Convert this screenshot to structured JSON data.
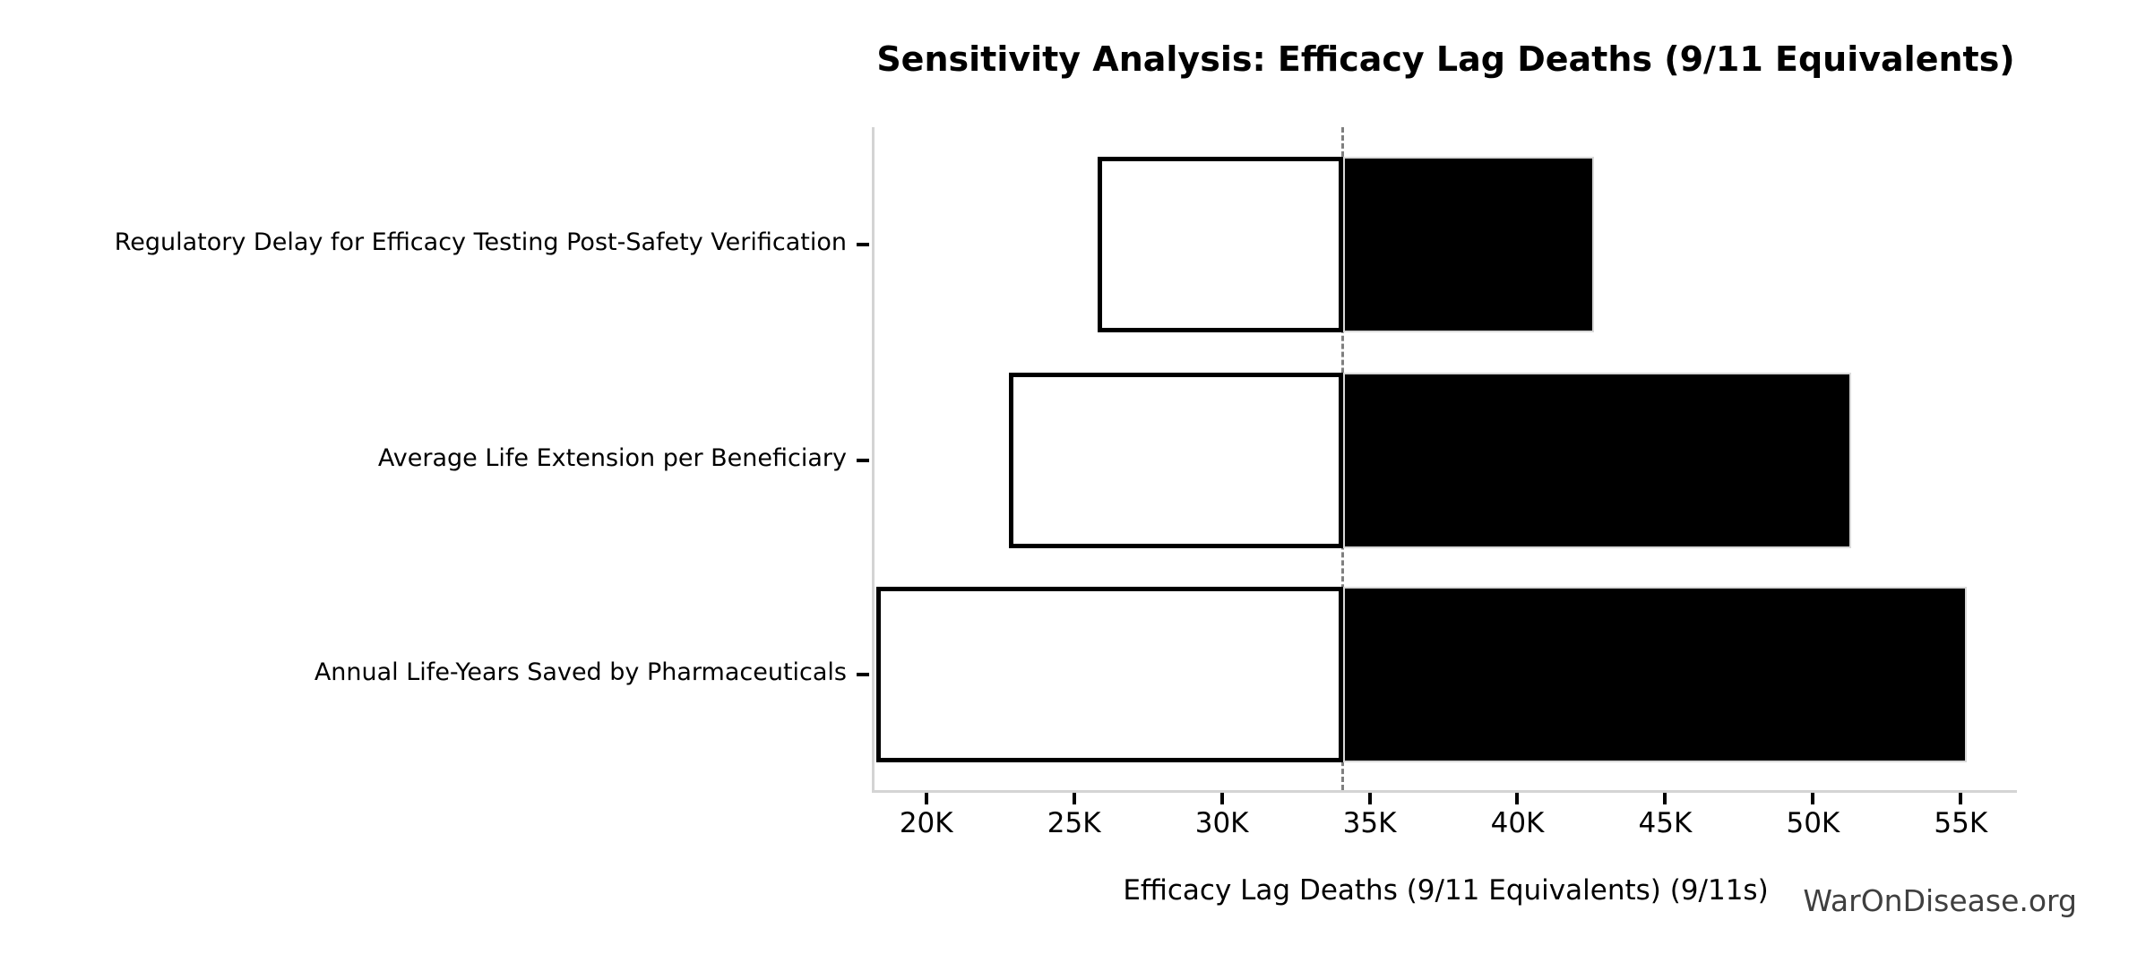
{
  "title": "Sensitivity Analysis: Efficacy Lag Deaths (9/11 Equivalents)",
  "watermark": "WarOnDisease.org",
  "chart_data": {
    "type": "bar",
    "subtype": "tornado",
    "title": "Sensitivity Analysis: Efficacy Lag Deaths (9/11 Equivalents)",
    "xlabel": "Efficacy Lag Deaths (9/11 Equivalents) (9/11s)",
    "ylabel": "",
    "orientation": "horizontal",
    "grid": false,
    "legend": false,
    "xlim": [
      18250,
      56900
    ],
    "baseline": 34100,
    "categories": [
      "Regulatory Delay for Efficacy Testing Post-Safety Verification",
      "Average Life Extension per Beneficiary",
      "Annual Life-Years Saved by Pharmaceuticals"
    ],
    "bars": [
      {
        "category": "Regulatory Delay for Efficacy Testing Post-Safety Verification",
        "low": 25800,
        "high": 42600
      },
      {
        "category": "Average Life Extension per Beneficiary",
        "low": 22800,
        "high": 51300
      },
      {
        "category": "Annual Life-Years Saved by Pharmaceuticals",
        "low": 18300,
        "high": 55200
      }
    ],
    "series": [
      {
        "name": "low",
        "values": [
          25800,
          22800,
          18300
        ]
      },
      {
        "name": "high",
        "values": [
          42600,
          51300,
          55200
        ]
      }
    ],
    "x_ticks": [
      {
        "value": 20000,
        "label": "20K"
      },
      {
        "value": 25000,
        "label": "25K"
      },
      {
        "value": 30000,
        "label": "30K"
      },
      {
        "value": 35000,
        "label": "35K"
      },
      {
        "value": 40000,
        "label": "40K"
      },
      {
        "value": 45000,
        "label": "45K"
      },
      {
        "value": 50000,
        "label": "50K"
      },
      {
        "value": 55000,
        "label": "55K"
      }
    ],
    "colors": {
      "low_fill": "#ffffff",
      "low_edge": "#000000",
      "high_fill": "#000000",
      "high_edge": "#d9d9d9",
      "baseline_line": "#7f7f7f",
      "axis_spine": "#d4d4d4",
      "tick_mark": "#000000",
      "text": "#000000",
      "watermark_text": "#3f3f3f"
    }
  }
}
